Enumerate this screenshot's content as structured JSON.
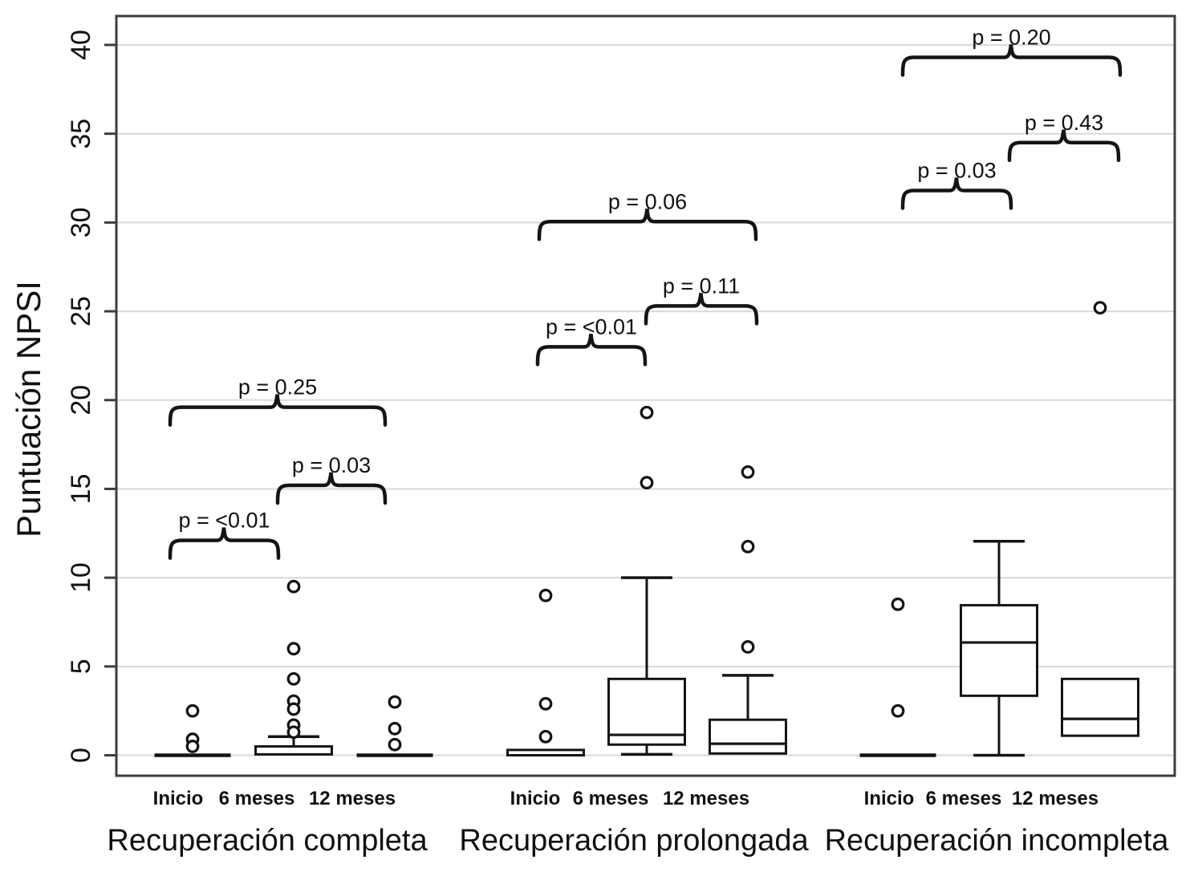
{
  "chart_data": {
    "type": "box",
    "title": "",
    "ylabel": "Puntuación NPSI",
    "ylim": [
      0,
      40
    ],
    "yticks": [
      0,
      5,
      10,
      15,
      20,
      25,
      30,
      35,
      40
    ],
    "grid": "horizontal",
    "time_labels": [
      "Inicio",
      "6 meses",
      "12 meses"
    ],
    "groups": [
      {
        "label": "Recuperación completa",
        "boxes": [
          {
            "time": "Inicio",
            "median": 0,
            "q1": 0,
            "q3": 0,
            "whisker_low": 0,
            "whisker_high": 0,
            "outliers": [
              2.5,
              0.9,
              0.5
            ]
          },
          {
            "time": "6 meses",
            "median": 0.15,
            "q1": 0.05,
            "q3": 0.5,
            "whisker_low": 0.05,
            "whisker_high": 1.05,
            "outliers": [
              9.5,
              6.0,
              4.3,
              3.05,
              2.6,
              1.7,
              1.3
            ]
          },
          {
            "time": "12 meses",
            "median": 0,
            "q1": 0,
            "q3": 0,
            "whisker_low": 0,
            "whisker_high": 0,
            "outliers": [
              3.0,
              1.5,
              0.6
            ]
          }
        ],
        "comparisons": [
          {
            "pair": [
              0,
              1
            ],
            "label": "p = <0.01",
            "y": 12.1
          },
          {
            "pair": [
              1,
              2
            ],
            "label": "p = 0.03",
            "y": 15.2
          },
          {
            "pair": [
              0,
              2
            ],
            "label": "p = 0.25",
            "y": 19.6
          }
        ]
      },
      {
        "label": "Recuperación prolongada",
        "boxes": [
          {
            "time": "Inicio",
            "median": 0.1,
            "q1": 0,
            "q3": 0.3,
            "whisker_low": 0,
            "whisker_high": 0.3,
            "outliers": [
              9.0,
              2.9,
              1.05
            ]
          },
          {
            "time": "6 meses",
            "median": 1.15,
            "q1": 0.6,
            "q3": 4.3,
            "whisker_low": 0.05,
            "whisker_high": 10.0,
            "outliers": [
              19.3,
              15.35
            ]
          },
          {
            "time": "12 meses",
            "median": 0.65,
            "q1": 0.1,
            "q3": 2.0,
            "whisker_low": 0.1,
            "whisker_high": 4.5,
            "outliers": [
              15.95,
              11.75,
              6.1
            ]
          }
        ],
        "comparisons": [
          {
            "pair": [
              0,
              1
            ],
            "label": "p = <0.01",
            "y": 23.0
          },
          {
            "pair": [
              1,
              2
            ],
            "label": "p = 0.11",
            "y": 25.3
          },
          {
            "pair": [
              0,
              2
            ],
            "label": "p = 0.06",
            "y": 30.05
          }
        ]
      },
      {
        "label": "Recuperación incompleta",
        "boxes": [
          {
            "time": "Inicio",
            "median": 0,
            "q1": 0,
            "q3": 0,
            "whisker_low": 0,
            "whisker_high": 0,
            "outliers": [
              8.5,
              2.5
            ]
          },
          {
            "time": "6 meses",
            "median": 6.35,
            "q1": 3.35,
            "q3": 8.45,
            "whisker_low": 0,
            "whisker_high": 12.05,
            "outliers": []
          },
          {
            "time": "12 meses",
            "median": 2.05,
            "q1": 1.1,
            "q3": 4.3,
            "whisker_low": 1.1,
            "whisker_high": 4.3,
            "outliers": [
              25.2
            ]
          }
        ],
        "comparisons": [
          {
            "pair": [
              0,
              1
            ],
            "label": "p = 0.03",
            "y": 31.8
          },
          {
            "pair": [
              1,
              2
            ],
            "label": "p = 0.43",
            "y": 34.5
          },
          {
            "pair": [
              0,
              2
            ],
            "label": "p = 0.20",
            "y": 39.3
          }
        ]
      }
    ]
  }
}
